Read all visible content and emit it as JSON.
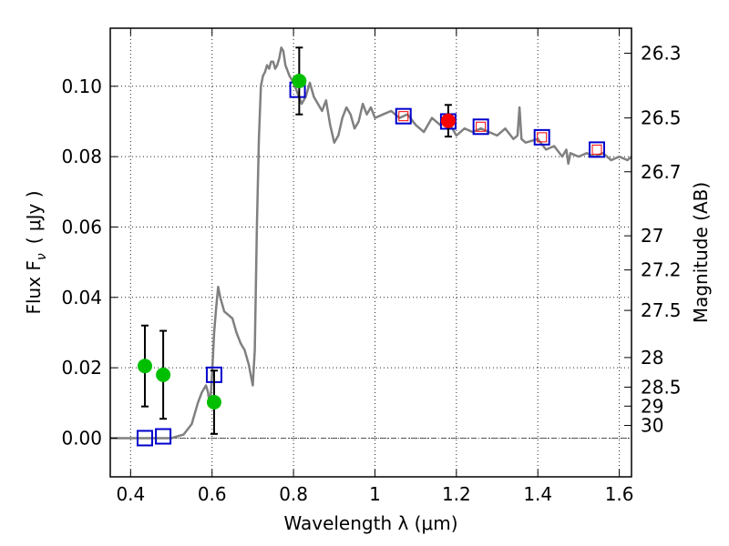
{
  "chart_data": {
    "type": "scatter",
    "title": "",
    "xlabel": "Wavelength  λ (μm)",
    "ylabel": "Flux  F",
    "ylabel_sub": "ν",
    "ylabel_unit": "( μJy )",
    "ylabel_right": "Magnitude (AB)",
    "xlim": [
      0.35,
      1.63
    ],
    "ylim": [
      -0.011,
      0.1165
    ],
    "x_ticks": [
      0.4,
      0.6,
      0.8,
      1.0,
      1.2,
      1.4,
      1.6
    ],
    "x_tick_labels": [
      "0.4",
      "0.6",
      "0.8",
      "1",
      "1.2",
      "1.4",
      "1.6"
    ],
    "y_ticks": [
      0.0,
      0.02,
      0.04,
      0.06,
      0.08,
      0.1
    ],
    "y_tick_labels": [
      "0.00",
      "0.02",
      "0.04",
      "0.06",
      "0.08",
      "0.10"
    ],
    "right_ticks": [
      {
        "label": "26.3",
        "flux": 0.1094
      },
      {
        "label": "26.5",
        "flux": 0.091
      },
      {
        "label": "26.7",
        "flux": 0.0757
      },
      {
        "label": "27",
        "flux": 0.0575
      },
      {
        "label": "27.2",
        "flux": 0.0478
      },
      {
        "label": "27.5",
        "flux": 0.0363
      },
      {
        "label": "28",
        "flux": 0.0229
      },
      {
        "label": "28.5",
        "flux": 0.0145
      },
      {
        "label": "29",
        "flux": 0.0091
      },
      {
        "label": "30",
        "flux": 0.0036
      }
    ],
    "grid": true,
    "zero_line": true,
    "series": [
      {
        "name": "model spectrum",
        "kind": "line",
        "color": "#808080",
        "x": [
          0.35,
          0.5,
          0.53,
          0.55,
          0.565,
          0.575,
          0.585,
          0.59,
          0.595,
          0.6,
          0.605,
          0.61,
          0.615,
          0.62,
          0.625,
          0.63,
          0.64,
          0.65,
          0.66,
          0.67,
          0.68,
          0.69,
          0.7,
          0.705,
          0.71,
          0.715,
          0.72,
          0.725,
          0.73,
          0.735,
          0.74,
          0.745,
          0.75,
          0.755,
          0.76,
          0.765,
          0.77,
          0.775,
          0.78,
          0.79,
          0.8,
          0.81,
          0.82,
          0.83,
          0.84,
          0.85,
          0.86,
          0.87,
          0.88,
          0.89,
          0.9,
          0.91,
          0.92,
          0.93,
          0.94,
          0.95,
          0.96,
          0.97,
          0.98,
          0.99,
          1.0,
          1.02,
          1.04,
          1.06,
          1.08,
          1.1,
          1.12,
          1.14,
          1.16,
          1.18,
          1.2,
          1.22,
          1.24,
          1.26,
          1.28,
          1.3,
          1.32,
          1.34,
          1.35,
          1.355,
          1.36,
          1.37,
          1.4,
          1.42,
          1.44,
          1.46,
          1.47,
          1.475,
          1.48,
          1.5,
          1.52,
          1.54,
          1.56,
          1.58,
          1.6,
          1.62,
          1.63
        ],
        "y": [
          0.0,
          0.0,
          0.001,
          0.004,
          0.01,
          0.013,
          0.015,
          0.013,
          0.009,
          0.018,
          0.03,
          0.037,
          0.043,
          0.04,
          0.038,
          0.036,
          0.035,
          0.034,
          0.03,
          0.027,
          0.025,
          0.021,
          0.015,
          0.025,
          0.06,
          0.085,
          0.1,
          0.103,
          0.104,
          0.106,
          0.105,
          0.107,
          0.107,
          0.105,
          0.106,
          0.108,
          0.111,
          0.11,
          0.106,
          0.103,
          0.101,
          0.098,
          0.095,
          0.097,
          0.101,
          0.097,
          0.095,
          0.093,
          0.096,
          0.089,
          0.084,
          0.086,
          0.091,
          0.094,
          0.092,
          0.088,
          0.09,
          0.095,
          0.092,
          0.094,
          0.091,
          0.092,
          0.093,
          0.091,
          0.092,
          0.089,
          0.087,
          0.091,
          0.089,
          0.09,
          0.086,
          0.088,
          0.087,
          0.088,
          0.087,
          0.086,
          0.088,
          0.085,
          0.086,
          0.094,
          0.085,
          0.084,
          0.085,
          0.082,
          0.083,
          0.08,
          0.082,
          0.078,
          0.081,
          0.08,
          0.081,
          0.08,
          0.081,
          0.079,
          0.08,
          0.079,
          0.08
        ]
      },
      {
        "name": "observed photometry (green)",
        "kind": "points",
        "color": "#00bf00",
        "points": [
          {
            "x": 0.435,
            "y": 0.0205,
            "err": 0.0115
          },
          {
            "x": 0.48,
            "y": 0.018,
            "err": 0.0125
          },
          {
            "x": 0.605,
            "y": 0.0102,
            "err": 0.009
          },
          {
            "x": 0.814,
            "y": 0.1015,
            "err": 0.0095
          }
        ]
      },
      {
        "name": "observed photometry (red)",
        "kind": "points",
        "color": "#ff0000",
        "points": [
          {
            "x": 1.18,
            "y": 0.0902,
            "err": 0.0045
          }
        ]
      },
      {
        "name": "model band flux (blue squares)",
        "kind": "squares",
        "color": "#0000cc",
        "points": [
          {
            "x": 0.435,
            "y": 0.0
          },
          {
            "x": 0.48,
            "y": 0.0005
          },
          {
            "x": 0.605,
            "y": 0.018
          },
          {
            "x": 0.81,
            "y": 0.099
          },
          {
            "x": 1.07,
            "y": 0.0915
          },
          {
            "x": 1.18,
            "y": 0.09
          },
          {
            "x": 1.26,
            "y": 0.0885
          },
          {
            "x": 1.41,
            "y": 0.0855
          },
          {
            "x": 1.545,
            "y": 0.082
          }
        ]
      },
      {
        "name": "model band flux (small red squares)",
        "kind": "small-squares",
        "color": "#ff0000",
        "points": [
          {
            "x": 1.07,
            "y": 0.0915
          },
          {
            "x": 1.18,
            "y": 0.09
          },
          {
            "x": 1.26,
            "y": 0.0885
          },
          {
            "x": 1.41,
            "y": 0.0855
          },
          {
            "x": 1.545,
            "y": 0.082
          }
        ]
      }
    ]
  }
}
